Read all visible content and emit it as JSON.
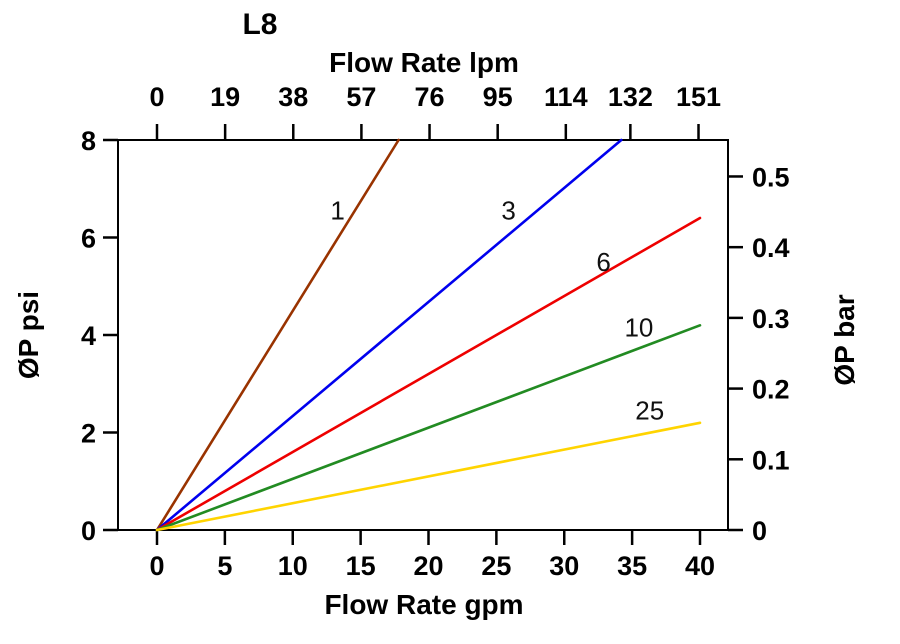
{
  "title": "L8",
  "chart_data": {
    "type": "line",
    "title": "L8",
    "grid": false,
    "legend": "inline-labels",
    "x_bottom": {
      "label": "Flow Rate gpm",
      "unit": "gpm",
      "range": [
        0,
        40
      ],
      "ticks": [
        0,
        5,
        10,
        15,
        20,
        25,
        30,
        35,
        40
      ]
    },
    "x_top": {
      "label": "Flow Rate lpm",
      "unit": "lpm",
      "ticks": [
        0,
        19,
        38,
        57,
        76,
        95,
        114,
        132,
        151
      ],
      "lpm_per_gpm": 3.7854
    },
    "y_left": {
      "label": "ØP psi",
      "unit": "psi",
      "range": [
        0,
        8
      ],
      "ticks": [
        0,
        2,
        4,
        6,
        8
      ]
    },
    "y_right": {
      "label": "ØP bar",
      "unit": "bar",
      "ticks": [
        0,
        0.1,
        0.2,
        0.3,
        0.4,
        0.5
      ],
      "psi_per_bar": 14.5038
    },
    "series": [
      {
        "name": "1",
        "color": "#993300",
        "points": [
          [
            0,
            0
          ],
          [
            17.8,
            8
          ]
        ],
        "label_at": [
          13.3,
          6.55
        ]
      },
      {
        "name": "3",
        "color": "#0000EE",
        "points": [
          [
            0,
            0
          ],
          [
            34.2,
            8
          ]
        ],
        "label_at": [
          25.9,
          6.55
        ]
      },
      {
        "name": "6",
        "color": "#EE0000",
        "points": [
          [
            0,
            0
          ],
          [
            40,
            6.4
          ]
        ],
        "label_at": [
          32.9,
          5.5
        ]
      },
      {
        "name": "10",
        "color": "#228B22",
        "points": [
          [
            0,
            0
          ],
          [
            40,
            4.2
          ]
        ],
        "label_at": [
          35.5,
          4.15
        ]
      },
      {
        "name": "25",
        "color": "#FFD400",
        "points": [
          [
            0,
            0
          ],
          [
            40,
            2.2
          ]
        ],
        "label_at": [
          36.3,
          2.45
        ]
      }
    ]
  }
}
